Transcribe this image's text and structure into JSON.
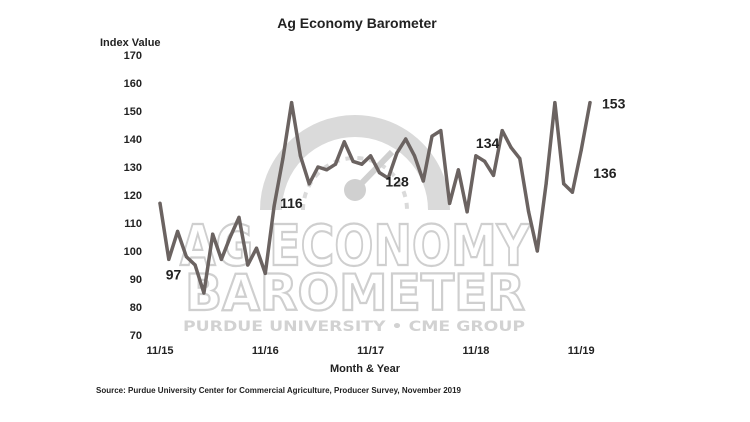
{
  "chart_data": {
    "type": "line",
    "title": "Ag Economy Barometer",
    "ylabel": "Index Value",
    "xlabel": "Month & Year",
    "ylim": [
      70,
      170
    ],
    "yticks": [
      70,
      80,
      90,
      100,
      110,
      120,
      130,
      140,
      150,
      160,
      170
    ],
    "xtick_labels": [
      "11/15",
      "11/16",
      "11/17",
      "11/18",
      "11/19"
    ],
    "grid": false,
    "series": [
      {
        "color": "#6b6361",
        "values": [
          117,
          97,
          107,
          98,
          95,
          85,
          106,
          97,
          105,
          112,
          95,
          101,
          92,
          116,
          133,
          153,
          134,
          124,
          130,
          129,
          131,
          139,
          132,
          131,
          134,
          128,
          126,
          135,
          140,
          134,
          125,
          141,
          143,
          117,
          129,
          114,
          134,
          132,
          127,
          143,
          137,
          133,
          114,
          100,
          124,
          153,
          124,
          121,
          136,
          153
        ]
      }
    ],
    "point_labels": [
      {
        "text": "97",
        "index": 1
      },
      {
        "text": "116",
        "index": 13
      },
      {
        "text": "128",
        "index": 25
      },
      {
        "text": "134",
        "index": 36
      },
      {
        "text": "153",
        "index": 49
      },
      {
        "text": "136",
        "index": 48
      }
    ]
  },
  "watermark": {
    "line1": "AG ECONOMY",
    "line2": "BAROMETER",
    "line3": "PURDUE UNIVERSITY • CME GROUP"
  },
  "source": "Source: Purdue University Center for Commercial Agriculture, Producer Survey, November 2019"
}
